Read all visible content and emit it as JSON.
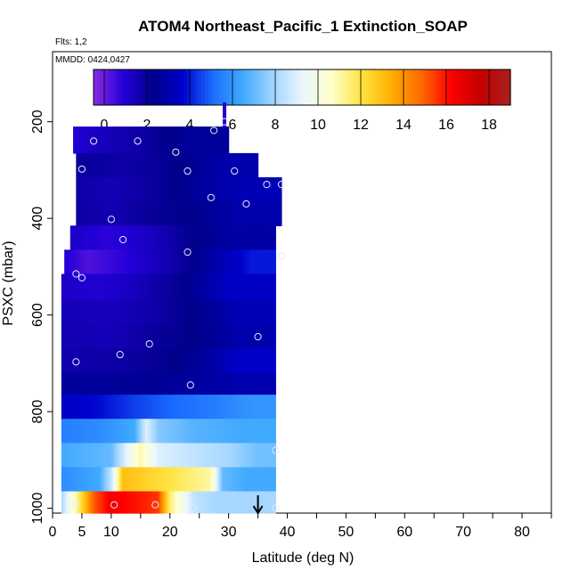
{
  "chart_data": {
    "type": "heatmap",
    "title": "ATOM4 Northeast_Pacific_1 Extinction_SOAP",
    "flights_note": "Flts: 1,2",
    "date_note": "MMDD: 0424,0427",
    "xlabel": "Latitude (deg N)",
    "ylabel": "PSXC (mbar)",
    "xlim": [
      0,
      85
    ],
    "ylim": [
      1010,
      55
    ],
    "x_ticks": [
      0,
      5,
      10,
      20,
      30,
      40,
      50,
      60,
      70,
      80
    ],
    "y_ticks": [
      200,
      400,
      600,
      800,
      1000
    ],
    "colorbar": {
      "range": [
        -0.5,
        19
      ],
      "ticks": [
        0,
        2,
        4,
        6,
        8,
        10,
        12,
        14,
        16,
        18
      ],
      "colors": [
        "#8a2be2",
        "#2400d8",
        "#00008b",
        "#0000cd",
        "#1a6cff",
        "#3fa9ff",
        "#9fd4ff",
        "#eaf6ff",
        "#ffffcc",
        "#ffe340",
        "#ffae00",
        "#ff6a00",
        "#ff0000",
        "#c40000",
        "#a82020"
      ]
    },
    "bands": [
      {
        "p_top": 210,
        "p_bot": 265,
        "x_start": 3.5,
        "cells": [
          [
            3.5,
            1.0
          ],
          [
            10,
            1.5
          ],
          [
            15,
            1.8
          ],
          [
            20,
            2.3
          ],
          [
            23,
            2.6
          ]
        ],
        "x_end": 30
      },
      {
        "p_top": 265,
        "p_bot": 315,
        "x_start": 4.0,
        "cells": [
          [
            4.0,
            2.0
          ],
          [
            12,
            1.8
          ],
          [
            18,
            2.0
          ],
          [
            24,
            2.5
          ],
          [
            30,
            3.0
          ]
        ],
        "x_end": 35
      },
      {
        "p_top": 315,
        "p_bot": 365,
        "x_start": 4.0,
        "cells": [
          [
            4.0,
            1.8
          ],
          [
            10,
            1.5
          ],
          [
            18,
            2.0
          ],
          [
            26,
            2.8
          ],
          [
            33,
            3.2
          ]
        ],
        "x_end": 39
      },
      {
        "p_top": 365,
        "p_bot": 415,
        "x_start": 4.0,
        "cells": [
          [
            4.0,
            1.9
          ],
          [
            10,
            1.6
          ],
          [
            16,
            2.0
          ],
          [
            24,
            2.3
          ],
          [
            32,
            3.0
          ]
        ],
        "x_end": 39
      },
      {
        "p_top": 415,
        "p_bot": 465,
        "x_start": 3.0,
        "cells": [
          [
            3.0,
            1.2
          ],
          [
            9,
            0.8
          ],
          [
            16,
            1.2
          ],
          [
            22,
            2.0
          ],
          [
            30,
            2.8
          ]
        ],
        "x_end": 38
      },
      {
        "p_top": 465,
        "p_bot": 515,
        "x_start": 2.0,
        "cells": [
          [
            2.0,
            1.0
          ],
          [
            6,
            0.3
          ],
          [
            12,
            0.8
          ],
          [
            20,
            1.6
          ],
          [
            28,
            3.0
          ],
          [
            34,
            4.0
          ]
        ],
        "x_end": 38
      },
      {
        "p_top": 515,
        "p_bot": 570,
        "x_start": 1.5,
        "cells": [
          [
            1.5,
            1.2
          ],
          [
            8,
            1.0
          ],
          [
            14,
            1.4
          ],
          [
            22,
            2.2
          ],
          [
            30,
            3.5
          ]
        ],
        "x_end": 38
      },
      {
        "p_top": 570,
        "p_bot": 620,
        "x_start": 1.5,
        "cells": [
          [
            1.5,
            1.5
          ],
          [
            10,
            1.4
          ],
          [
            18,
            1.8
          ],
          [
            26,
            2.5
          ],
          [
            32,
            3.2
          ]
        ],
        "x_end": 38
      },
      {
        "p_top": 620,
        "p_bot": 670,
        "x_start": 1.5,
        "cells": [
          [
            1.5,
            1.6
          ],
          [
            10,
            1.5
          ],
          [
            18,
            2.0
          ],
          [
            26,
            2.4
          ],
          [
            32,
            3.0
          ]
        ],
        "x_end": 38
      },
      {
        "p_top": 670,
        "p_bot": 720,
        "x_start": 1.5,
        "cells": [
          [
            1.5,
            1.7
          ],
          [
            10,
            1.8
          ],
          [
            18,
            2.1
          ],
          [
            26,
            2.7
          ],
          [
            32,
            3.6
          ]
        ],
        "x_end": 38
      },
      {
        "p_top": 720,
        "p_bot": 765,
        "x_start": 1.5,
        "cells": [
          [
            1.5,
            2.6
          ],
          [
            10,
            2.6
          ],
          [
            18,
            2.5
          ],
          [
            26,
            2.8
          ],
          [
            32,
            3.0
          ]
        ],
        "x_end": 38
      },
      {
        "p_top": 765,
        "p_bot": 815,
        "x_start": 1.5,
        "cells": [
          [
            1.5,
            3.5
          ],
          [
            8,
            3.8
          ],
          [
            14,
            4.5
          ],
          [
            20,
            5.0
          ],
          [
            28,
            5.5
          ],
          [
            34,
            6.0
          ]
        ],
        "x_end": 38
      },
      {
        "p_top": 815,
        "p_bot": 865,
        "x_start": 1.5,
        "cells": [
          [
            1.5,
            5.5
          ],
          [
            8,
            5.8
          ],
          [
            14,
            6.5
          ],
          [
            16,
            9.0
          ],
          [
            18,
            7.5
          ],
          [
            24,
            6.8
          ],
          [
            32,
            6.5
          ]
        ],
        "x_end": 38
      },
      {
        "p_top": 865,
        "p_bot": 915,
        "x_start": 1.5,
        "cells": [
          [
            1.5,
            6.5
          ],
          [
            10,
            7.0
          ],
          [
            13,
            9.5
          ],
          [
            15,
            11.0
          ],
          [
            18,
            9.0
          ],
          [
            24,
            8.5
          ],
          [
            30,
            8.0
          ],
          [
            35,
            7.2
          ]
        ],
        "x_end": 38
      },
      {
        "p_top": 915,
        "p_bot": 965,
        "x_start": 1.5,
        "cells": [
          [
            1.5,
            5.8
          ],
          [
            8,
            6.5
          ],
          [
            10,
            8.5
          ],
          [
            12,
            13.0
          ],
          [
            20,
            12.0
          ],
          [
            27,
            11.0
          ],
          [
            29,
            7.0
          ],
          [
            33,
            6.5
          ]
        ],
        "x_end": 38
      },
      {
        "p_top": 965,
        "p_bot": 1010,
        "x_start": 1.5,
        "cells": [
          [
            1.5,
            8.0
          ],
          [
            4,
            11.0
          ],
          [
            7,
            15.0
          ],
          [
            10,
            16.5
          ],
          [
            18,
            15.5
          ],
          [
            20,
            11.5
          ],
          [
            24,
            8.5
          ],
          [
            28,
            8.0
          ]
        ],
        "x_end": 38
      }
    ],
    "spike": {
      "x": 29.3,
      "p_top": 160,
      "p_bot": 210,
      "value": 1.0
    },
    "sample_points": [
      [
        29.3,
        200
      ],
      [
        27.5,
        218
      ],
      [
        7,
        240
      ],
      [
        14.5,
        240
      ],
      [
        21,
        263
      ],
      [
        5,
        298
      ],
      [
        23,
        302
      ],
      [
        31,
        302
      ],
      [
        36.5,
        330
      ],
      [
        39,
        330
      ],
      [
        27,
        357
      ],
      [
        33,
        370
      ],
      [
        10,
        402
      ],
      [
        12,
        444
      ],
      [
        23,
        470
      ],
      [
        39,
        478
      ],
      [
        4,
        515
      ],
      [
        5,
        523
      ],
      [
        16.5,
        660
      ],
      [
        35,
        645
      ],
      [
        11.5,
        682
      ],
      [
        4,
        697
      ],
      [
        23.5,
        745
      ],
      [
        38,
        880
      ],
      [
        10.5,
        993
      ],
      [
        17.5,
        993
      ],
      [
        24,
        1000
      ],
      [
        38,
        1000
      ],
      [
        4,
        993
      ]
    ],
    "arrow_marker": {
      "x": 35,
      "direction": "down"
    }
  }
}
